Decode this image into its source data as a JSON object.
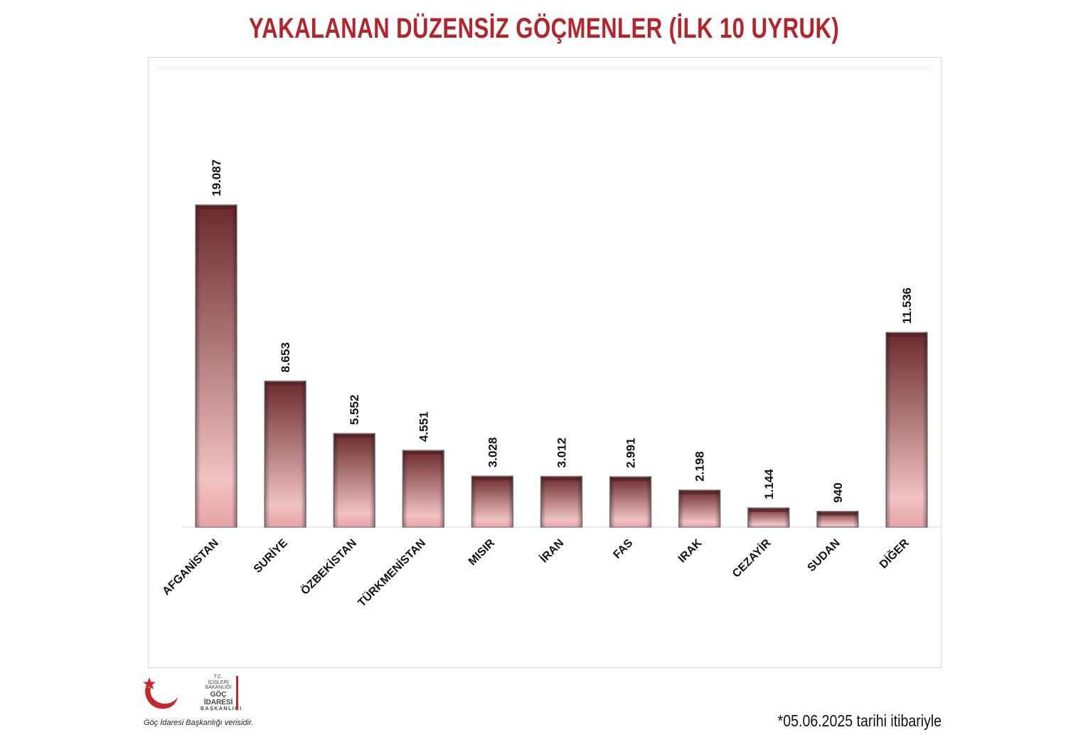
{
  "title": "YAKALANAN DÜZENSİZ GÖÇMENLER (İLK 10 UYRUK)",
  "note": "*05.06.2025 tarihi itibariyle",
  "source": "Göç İdaresi Başkanlığı verisidir.",
  "logo": {
    "line1": "T.C.",
    "line2": "İÇİŞLERİ BAKANLIĞI",
    "line3": "GÖÇ İDARESİ",
    "line4": "BAŞKANLIĞI"
  },
  "colors": {
    "title": "#b5232b",
    "bar_top": "#6b2a2c",
    "bar_bottom": "#f2bfc0",
    "logo_red": "#c9252c"
  },
  "chart_data": {
    "type": "bar",
    "categories": [
      "AFGANİSTAN",
      "SURİYE",
      "ÖZBEKİSTAN",
      "TÜRKMENİSTAN",
      "MISIR",
      "İRAN",
      "FAS",
      "IRAK",
      "CEZAYİR",
      "SUDAN",
      "DİĞER"
    ],
    "values": [
      19087,
      8653,
      5552,
      4551,
      3028,
      3012,
      2991,
      2198,
      1144,
      940,
      11536
    ],
    "value_labels": [
      "19.087",
      "8.653",
      "5.552",
      "4.551",
      "3.028",
      "3.012",
      "2.991",
      "2.198",
      "1.144",
      "940",
      "11.536"
    ],
    "ylim": [
      0,
      19087
    ],
    "grid": false,
    "legend": "none"
  }
}
